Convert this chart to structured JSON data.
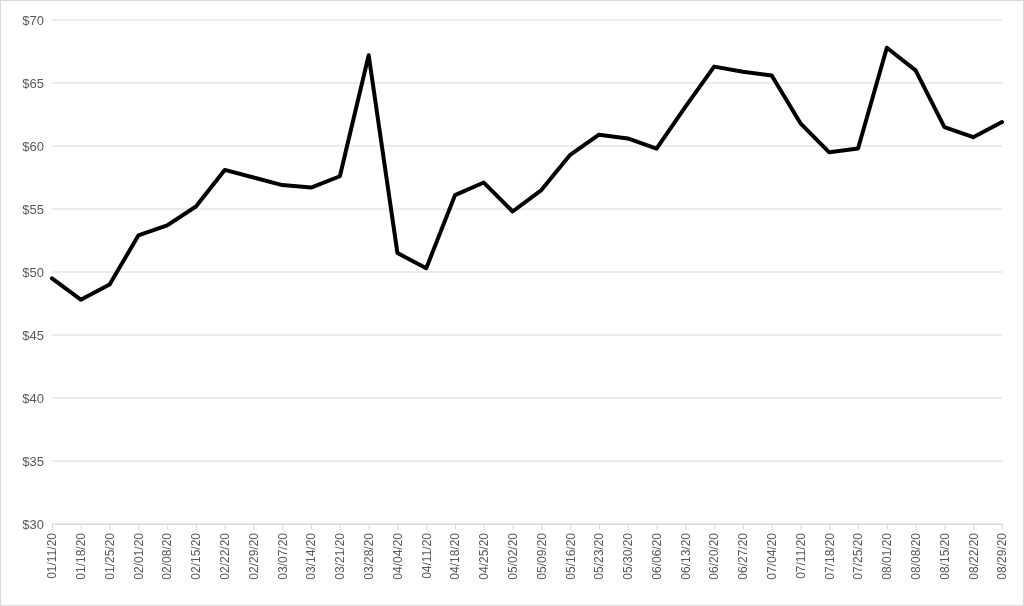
{
  "chart_data": {
    "type": "line",
    "categories": [
      "01/11/20",
      "01/18/20",
      "01/25/20",
      "02/01/20",
      "02/08/20",
      "02/15/20",
      "02/22/20",
      "02/29/20",
      "03/07/20",
      "03/14/20",
      "03/21/20",
      "03/28/20",
      "04/04/20",
      "04/11/20",
      "04/18/20",
      "04/25/20",
      "05/02/20",
      "05/09/20",
      "05/16/20",
      "05/23/20",
      "05/30/20",
      "06/06/20",
      "06/13/20",
      "06/20/20",
      "06/27/20",
      "07/04/20",
      "07/11/20",
      "07/18/20",
      "07/25/20",
      "08/01/20",
      "08/08/20",
      "08/15/20",
      "08/22/20",
      "08/29/20"
    ],
    "series": [
      {
        "color": "#000000",
        "values": [
          49.5,
          47.8,
          49.0,
          52.9,
          53.7,
          55.2,
          58.1,
          57.5,
          56.9,
          56.7,
          57.6,
          67.2,
          51.5,
          50.3,
          56.1,
          57.1,
          54.8,
          56.5,
          59.3,
          60.9,
          60.6,
          59.8,
          63.1,
          66.3,
          65.9,
          65.6,
          61.8,
          59.5,
          59.8,
          67.8,
          66.0,
          61.5,
          60.7,
          61.9
        ]
      }
    ],
    "ylim": [
      30,
      70
    ],
    "yticks": [
      {
        "value": 30,
        "label": "$30"
      },
      {
        "value": 35,
        "label": "$35"
      },
      {
        "value": 40,
        "label": "$40"
      },
      {
        "value": 45,
        "label": "$45"
      },
      {
        "value": 50,
        "label": "$50"
      },
      {
        "value": 55,
        "label": "$55"
      },
      {
        "value": 60,
        "label": "$60"
      },
      {
        "value": 65,
        "label": "$65"
      },
      {
        "value": 70,
        "label": "$70"
      }
    ],
    "grid": "y",
    "line_style": "solid",
    "marker": "none"
  }
}
